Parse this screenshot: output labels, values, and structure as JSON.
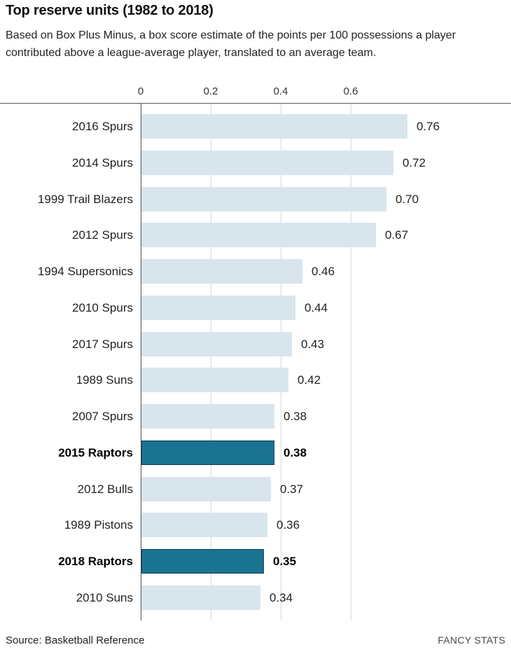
{
  "header": {
    "title": "Top reserve units (1982 to 2018)",
    "subtitle": "Based on Box Plus Minus, a box score estimate of the points per 100 possessions a player contributed above a league-average player, translated to an average team."
  },
  "chart_data": {
    "type": "bar",
    "orientation": "horizontal",
    "title": "Top reserve units (1982 to 2018)",
    "xlabel": "",
    "ylabel": "",
    "axis": {
      "ticks": [
        0,
        0.2,
        0.4,
        0.6
      ],
      "tick_labels": [
        "0",
        "0.2",
        "0.4",
        "0.6"
      ],
      "xlim": [
        0,
        1.06
      ],
      "gridlines": true,
      "axis_position": "top"
    },
    "categories": [
      "2016 Spurs",
      "2014 Spurs",
      "1999 Trail Blazers",
      "2012 Spurs",
      "1994 Supersonics",
      "2010 Spurs",
      "2017 Spurs",
      "1989 Suns",
      "2007 Spurs",
      "2015 Raptors",
      "2012 Bulls",
      "1989 Pistons",
      "2018 Raptors",
      "2010 Suns"
    ],
    "values": [
      0.76,
      0.72,
      0.7,
      0.67,
      0.46,
      0.44,
      0.43,
      0.42,
      0.38,
      0.38,
      0.37,
      0.36,
      0.35,
      0.34
    ],
    "rows": [
      {
        "label": "2016 Spurs",
        "value": 0.76,
        "display": "0.76",
        "highlight": false
      },
      {
        "label": "2014 Spurs",
        "value": 0.72,
        "display": "0.72",
        "highlight": false
      },
      {
        "label": "1999 Trail Blazers",
        "value": 0.7,
        "display": "0.70",
        "highlight": false
      },
      {
        "label": "2012 Spurs",
        "value": 0.67,
        "display": "0.67",
        "highlight": false
      },
      {
        "label": "1994 Supersonics",
        "value": 0.46,
        "display": "0.46",
        "highlight": false
      },
      {
        "label": "2010 Spurs",
        "value": 0.44,
        "display": "0.44",
        "highlight": false
      },
      {
        "label": "2017 Spurs",
        "value": 0.43,
        "display": "0.43",
        "highlight": false
      },
      {
        "label": "1989 Suns",
        "value": 0.42,
        "display": "0.42",
        "highlight": false
      },
      {
        "label": "2007 Spurs",
        "value": 0.38,
        "display": "0.38",
        "highlight": false
      },
      {
        "label": "2015 Raptors",
        "value": 0.38,
        "display": "0.38",
        "highlight": true
      },
      {
        "label": "2012 Bulls",
        "value": 0.37,
        "display": "0.37",
        "highlight": false
      },
      {
        "label": "1989 Pistons",
        "value": 0.36,
        "display": "0.36",
        "highlight": false
      },
      {
        "label": "2018 Raptors",
        "value": 0.35,
        "display": "0.35",
        "highlight": true
      },
      {
        "label": "2010 Suns",
        "value": 0.34,
        "display": "0.34",
        "highlight": false
      }
    ],
    "highlighted": [
      "2015 Raptors",
      "2018 Raptors"
    ],
    "colors": {
      "bar": "#d8e5ed",
      "highlight": "#1b7392",
      "highlight_border": "#123d55",
      "axis_line": "#58595b",
      "gridline": "#d9d9d9"
    },
    "legend": null
  },
  "footer": {
    "source": "Source: Basketball Reference",
    "credit": "FANCY STATS"
  }
}
